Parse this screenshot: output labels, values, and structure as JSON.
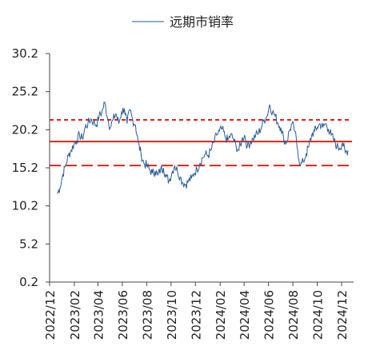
{
  "chart_data": {
    "type": "line",
    "legend": {
      "position": "top-center"
    },
    "series": [
      {
        "name": "远期市销率",
        "color": "#2a5c9a",
        "x": [
          "2022-12-20",
          "2022-12-27",
          "2023-01-03",
          "2023-01-10",
          "2023-01-17",
          "2023-01-24",
          "2023-01-31",
          "2023-02-07",
          "2023-02-14",
          "2023-02-21",
          "2023-02-28",
          "2023-03-07",
          "2023-03-14",
          "2023-03-21",
          "2023-03-28",
          "2023-04-04",
          "2023-04-11",
          "2023-04-18",
          "2023-04-25",
          "2023-05-02",
          "2023-05-09",
          "2023-05-16",
          "2023-05-23",
          "2023-05-30",
          "2023-06-06",
          "2023-06-13",
          "2023-06-20",
          "2023-06-27",
          "2023-07-04",
          "2023-07-11",
          "2023-07-18",
          "2023-07-25",
          "2023-08-01",
          "2023-08-08",
          "2023-08-15",
          "2023-08-22",
          "2023-08-29",
          "2023-09-05",
          "2023-09-12",
          "2023-09-19",
          "2023-09-26",
          "2023-10-03",
          "2023-10-10",
          "2023-10-17",
          "2023-10-24",
          "2023-10-31",
          "2023-11-07",
          "2023-11-14",
          "2023-11-21",
          "2023-11-28",
          "2023-12-05",
          "2023-12-12",
          "2023-12-19",
          "2023-12-26",
          "2024-01-02",
          "2024-01-09",
          "2024-01-16",
          "2024-01-23",
          "2024-01-30",
          "2024-02-06",
          "2024-02-13",
          "2024-02-20",
          "2024-02-27",
          "2024-03-05",
          "2024-03-12",
          "2024-03-19",
          "2024-03-26",
          "2024-04-02",
          "2024-04-09",
          "2024-04-16",
          "2024-04-23",
          "2024-04-30",
          "2024-05-07",
          "2024-05-14",
          "2024-05-21",
          "2024-05-28",
          "2024-06-04",
          "2024-06-11",
          "2024-06-18",
          "2024-06-25",
          "2024-07-02",
          "2024-07-09",
          "2024-07-16",
          "2024-07-23",
          "2024-07-30",
          "2024-08-06",
          "2024-08-13",
          "2024-08-20",
          "2024-08-27",
          "2024-09-03",
          "2024-09-10",
          "2024-09-17",
          "2024-09-24",
          "2024-10-01",
          "2024-10-08",
          "2024-10-15",
          "2024-10-22",
          "2024-10-29",
          "2024-11-05",
          "2024-11-12",
          "2024-11-19",
          "2024-11-26",
          "2024-12-03",
          "2024-12-10",
          "2024-12-17"
        ],
        "values": [
          11.8,
          12.6,
          14.3,
          15.5,
          16.8,
          17.5,
          18.3,
          18.8,
          19.5,
          19.0,
          20.5,
          21.0,
          21.6,
          21.2,
          20.8,
          22.0,
          22.5,
          23.8,
          21.8,
          20.5,
          21.5,
          22.3,
          21.0,
          22.5,
          23.0,
          21.0,
          22.8,
          21.5,
          20.8,
          18.5,
          17.0,
          15.8,
          15.5,
          15.0,
          14.5,
          14.8,
          14.2,
          15.0,
          15.2,
          14.0,
          13.5,
          14.5,
          15.5,
          14.8,
          14.0,
          13.2,
          13.0,
          13.5,
          13.8,
          14.5,
          15.0,
          15.8,
          16.5,
          17.0,
          16.8,
          17.5,
          18.5,
          19.5,
          20.0,
          20.3,
          19.3,
          18.8,
          19.5,
          19.0,
          18.0,
          17.5,
          18.8,
          19.5,
          18.0,
          18.5,
          19.0,
          19.5,
          19.8,
          20.5,
          21.5,
          22.0,
          23.5,
          22.5,
          22.0,
          21.0,
          20.5,
          19.0,
          18.5,
          20.0,
          21.0,
          20.0,
          17.5,
          15.5,
          16.0,
          17.0,
          18.0,
          19.5,
          20.0,
          20.5,
          21.0,
          20.5,
          21.0,
          20.3,
          19.5,
          18.8,
          18.0,
          17.8,
          18.5,
          17.2,
          17.5
        ]
      }
    ],
    "reference_lines": [
      {
        "value": 18.65,
        "style": "solid",
        "color": "#e32219"
      },
      {
        "value": 21.5,
        "style": "dotted",
        "color": "#e32219"
      },
      {
        "value": 15.5,
        "style": "dashed",
        "color": "#e32219"
      }
    ],
    "y_axis": {
      "min": 0.2,
      "max": 30.2,
      "ticks": [
        "0.2",
        "5.2",
        "10.2",
        "15.2",
        "20.2",
        "25.2",
        "30.2"
      ]
    },
    "x_axis": {
      "min": "2022-12-01",
      "max": "2024-12-31",
      "ticks": [
        "2022/12",
        "2023/02",
        "2023/04",
        "2023/06",
        "2023/08",
        "2023/10",
        "2023/12",
        "2024/02",
        "2024/04",
        "2024/06",
        "2024/08",
        "2024/10",
        "2024/12"
      ]
    },
    "grid": false
  }
}
